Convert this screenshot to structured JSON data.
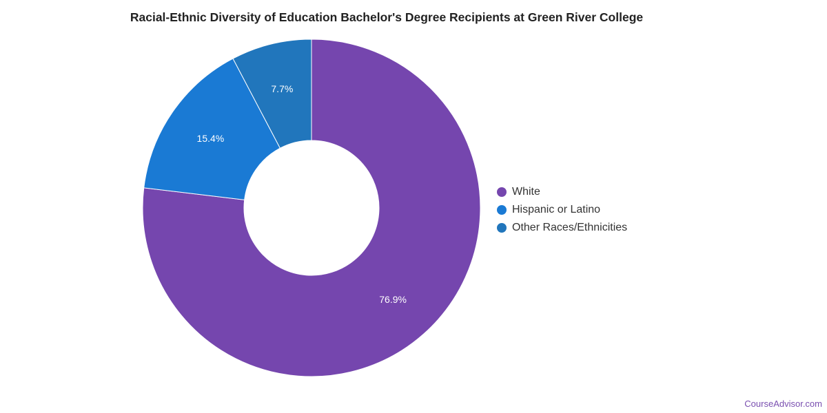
{
  "chart_data": {
    "type": "pie",
    "title": "Racial-Ethnic Diversity of Education Bachelor's Degree Recipients at Green River College",
    "categories": [
      "White",
      "Hispanic or Latino",
      "Other Races/Ethnicities"
    ],
    "values": [
      76.9,
      15.4,
      7.7
    ],
    "data_labels": [
      "76.9%",
      "15.4%",
      "7.7%"
    ],
    "colors": [
      "#7546ae",
      "#1a7ad4",
      "#2176bc"
    ],
    "donut": true,
    "legend_position": "right"
  },
  "footer": {
    "credit": "CourseAdvisor.com"
  }
}
